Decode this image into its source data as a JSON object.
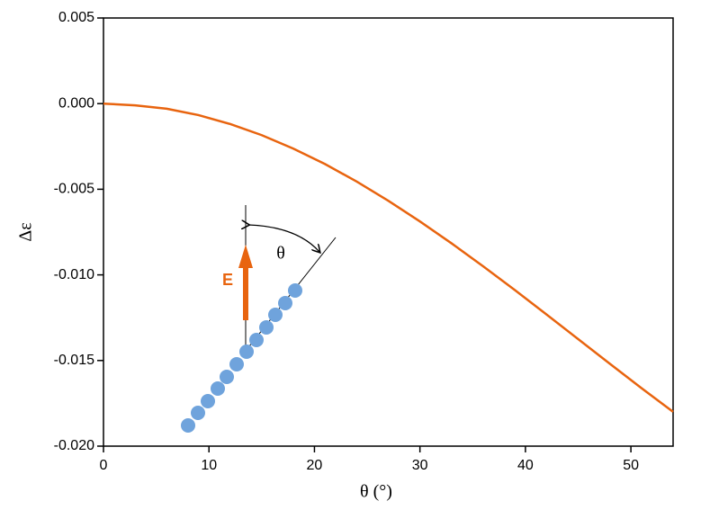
{
  "chart_data": {
    "type": "line",
    "x_label": "θ (°)",
    "y_label": "Δε",
    "x": [
      0,
      3,
      6,
      9,
      12,
      15,
      18,
      21,
      24,
      27,
      30,
      33,
      36,
      39,
      42,
      45,
      48,
      51,
      54
    ],
    "values": [
      0,
      -0.0001,
      -0.0003,
      -0.00067,
      -0.00119,
      -0.00184,
      -0.00263,
      -0.00353,
      -0.00455,
      -0.00567,
      -0.00688,
      -0.00816,
      -0.0095,
      -0.01089,
      -0.01231,
      -0.01375,
      -0.01519,
      -0.01661,
      -0.018
    ],
    "color": "#e8640f",
    "xlim": [
      0,
      54
    ],
    "xticks": [
      0,
      10,
      20,
      30,
      40,
      50
    ],
    "ylim": [
      -0.02,
      0.005
    ],
    "yticks": [
      {
        "value": -0.02,
        "label": "-0.020"
      },
      {
        "value": -0.015,
        "label": "-0.015"
      },
      {
        "value": -0.01,
        "label": "-0.010"
      },
      {
        "value": -0.005,
        "label": "-0.005"
      },
      {
        "value": 0,
        "label": "0.000"
      },
      {
        "value": 0.005,
        "label": "0.005"
      }
    ],
    "annotations": {
      "field": "E",
      "angle": "θ"
    }
  }
}
